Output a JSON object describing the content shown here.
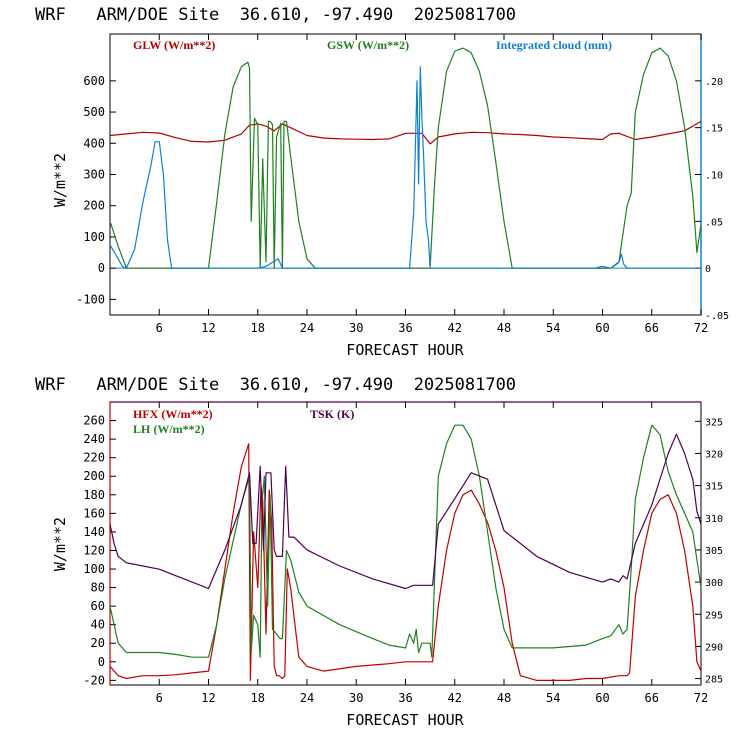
{
  "chart_data": [
    {
      "type": "line",
      "title": "WRF   ARM/DOE Site  36.610, -97.490  2025081700",
      "xlabel": "FORECAST HOUR",
      "ylabel": "W/m**2",
      "xlim": [
        0,
        72
      ],
      "ylim": [
        -150,
        750
      ],
      "x_ticks": [
        6,
        12,
        18,
        24,
        30,
        36,
        42,
        48,
        54,
        60,
        66,
        72
      ],
      "y_ticks": [
        -100,
        0,
        100,
        200,
        300,
        400,
        500,
        600
      ],
      "y2_ticks": [
        -0.05,
        0,
        0.05,
        0.1,
        0.15,
        0.2
      ],
      "y2_tick_labels": [
        "-.05",
        "0",
        ".05",
        ".10",
        ".15",
        ".20"
      ],
      "y2lim": [
        -0.05,
        0.25
      ],
      "series": [
        {
          "name": "GLW (W/m**2)",
          "axis": "left",
          "color": "#b00000",
          "x": [
            0,
            2,
            4,
            6,
            8,
            10,
            12,
            14,
            16,
            17,
            18,
            19,
            20,
            21,
            22,
            24,
            26,
            28,
            30,
            32,
            34,
            36,
            38,
            39,
            40,
            42,
            44,
            46,
            48,
            50,
            52,
            54,
            56,
            58,
            60,
            61,
            62,
            64,
            66,
            68,
            70,
            71,
            72
          ],
          "y": [
            425,
            430,
            435,
            433,
            418,
            406,
            404,
            410,
            430,
            458,
            462,
            455,
            440,
            462,
            450,
            425,
            417,
            414,
            413,
            412,
            414,
            432,
            432,
            398,
            420,
            430,
            435,
            434,
            430,
            428,
            425,
            420,
            418,
            415,
            412,
            430,
            432,
            412,
            420,
            430,
            440,
            455,
            470
          ]
        },
        {
          "name": "GSW (W/m**2)",
          "axis": "left",
          "color": "#208020",
          "x": [
            0,
            1,
            2,
            10,
            12,
            13,
            14,
            15,
            16,
            16.8,
            17,
            17.2,
            17.6,
            18.0,
            18.3,
            18.6,
            19.0,
            19.3,
            19.5,
            19.8,
            20.0,
            20.3,
            20.8,
            21.0,
            21.2,
            21.5,
            22,
            23,
            24,
            25,
            36,
            37,
            38,
            39,
            39.5,
            40,
            41,
            42,
            43,
            44,
            45,
            46,
            47,
            48,
            49,
            60,
            61,
            62,
            63,
            63.5,
            64,
            65,
            66,
            67,
            68,
            69,
            70,
            71,
            71.5,
            72
          ],
          "y": [
            150,
            70,
            0,
            0,
            0,
            210,
            430,
            580,
            645,
            660,
            640,
            150,
            480,
            460,
            0,
            350,
            20,
            470,
            470,
            460,
            0,
            420,
            465,
            0,
            470,
            470,
            360,
            150,
            30,
            0,
            0,
            0,
            0,
            0,
            250,
            450,
            630,
            695,
            705,
            690,
            630,
            520,
            340,
            150,
            0,
            0,
            0,
            20,
            200,
            240,
            500,
            620,
            690,
            705,
            680,
            600,
            450,
            230,
            50,
            140
          ]
        },
        {
          "name": "Integrated cloud (mm)",
          "axis": "right",
          "color": "#1080d0",
          "x": [
            0,
            1,
            1.5,
            2,
            3,
            4,
            5,
            5.5,
            6,
            6.5,
            7,
            7.5,
            8,
            9,
            18,
            19,
            20.5,
            21,
            22,
            36.5,
            37,
            37.2,
            37.4,
            37.6,
            37.8,
            38.0,
            38.2,
            38.5,
            38.8,
            39,
            40,
            59,
            60,
            61,
            62,
            62.3,
            62.6,
            63,
            72
          ],
          "y": [
            0.025,
            0.01,
            0.002,
            0.0,
            0.02,
            0.07,
            0.11,
            0.135,
            0.135,
            0.1,
            0.03,
            0.0,
            0.0,
            0.0,
            0.0,
            0.002,
            0.01,
            0.0,
            0.0,
            0.0,
            0.06,
            0.13,
            0.2,
            0.09,
            0.215,
            0.16,
            0.12,
            0.05,
            0.03,
            0.0,
            0.0,
            0.0,
            0.002,
            0.0,
            0.006,
            0.015,
            0.004,
            0.0,
            0.0
          ]
        }
      ]
    },
    {
      "type": "line",
      "title": "WRF   ARM/DOE Site  36.610, -97.490  2025081700",
      "xlabel": "FORECAST HOUR",
      "ylabel": "W/m**2",
      "xlim": [
        0,
        72
      ],
      "ylim": [
        -25,
        280
      ],
      "x_ticks": [
        6,
        12,
        18,
        24,
        30,
        36,
        42,
        48,
        54,
        60,
        66,
        72
      ],
      "y_ticks": [
        -20,
        0,
        20,
        40,
        60,
        80,
        100,
        120,
        140,
        160,
        180,
        200,
        220,
        240,
        260
      ],
      "y2_ticks": [
        285,
        290,
        295,
        300,
        305,
        310,
        315,
        320,
        325
      ],
      "y2lim": [
        284,
        328
      ],
      "series": [
        {
          "name": "HFX (W/m**2)",
          "axis": "left",
          "color": "#c00000",
          "x": [
            0,
            1,
            2,
            4,
            6,
            8,
            10,
            12,
            13,
            14,
            15,
            16,
            16.9,
            17.1,
            17.5,
            18,
            18.4,
            18.6,
            19,
            19.4,
            19.7,
            20,
            20.3,
            20.6,
            21,
            21.3,
            21.6,
            22,
            23,
            24,
            26,
            30,
            34,
            36,
            38,
            39,
            39.3,
            40,
            41,
            42,
            43,
            44,
            45,
            46,
            47,
            48,
            49,
            50,
            52,
            54,
            56,
            58,
            60,
            62,
            63,
            63.3,
            64,
            65,
            66,
            67,
            68,
            69,
            70,
            71,
            71.5,
            72
          ],
          "y": [
            -5,
            -15,
            -18,
            -15,
            -15,
            -14,
            -12,
            -10,
            40,
            100,
            160,
            210,
            235,
            -20,
            140,
            80,
            190,
            175,
            30,
            185,
            150,
            -5,
            -15,
            -15,
            -18,
            -15,
            100,
            80,
            5,
            -5,
            -10,
            -5,
            -2,
            0,
            0,
            0,
            0,
            60,
            120,
            160,
            180,
            185,
            170,
            150,
            120,
            80,
            20,
            -15,
            -20,
            -20,
            -20,
            -18,
            -18,
            -15,
            -15,
            -12,
            70,
            120,
            160,
            175,
            180,
            160,
            120,
            60,
            0,
            -10
          ]
        },
        {
          "name": "LH (W/m**2)",
          "axis": "left",
          "color": "#208020",
          "x": [
            0,
            1,
            2,
            4,
            6,
            8,
            10,
            12,
            13,
            14,
            15,
            16,
            17,
            17.2,
            17.5,
            18,
            18.3,
            18.5,
            18.8,
            19.2,
            19.5,
            19.8,
            20.3,
            20.7,
            21,
            21.5,
            22,
            23,
            24,
            28,
            32,
            34,
            36,
            36.5,
            37,
            37.3,
            37.6,
            38,
            39,
            39.2,
            40,
            41,
            42,
            43,
            44,
            45,
            46,
            47,
            48,
            49,
            50,
            54,
            58,
            60,
            61,
            62,
            62.5,
            63,
            63.5,
            64,
            65,
            66,
            67,
            68,
            69,
            70,
            71,
            72
          ],
          "y": [
            60,
            20,
            10,
            10,
            10,
            8,
            5,
            5,
            40,
            90,
            130,
            170,
            200,
            10,
            50,
            40,
            5,
            170,
            200,
            60,
            180,
            35,
            30,
            25,
            25,
            120,
            110,
            75,
            60,
            40,
            25,
            18,
            15,
            30,
            20,
            35,
            10,
            20,
            20,
            5,
            200,
            235,
            255,
            255,
            240,
            200,
            140,
            80,
            35,
            15,
            15,
            15,
            18,
            25,
            28,
            40,
            30,
            35,
            100,
            175,
            220,
            255,
            245,
            205,
            180,
            160,
            140,
            80
          ]
        },
        {
          "name": "TSK (K)",
          "axis": "right",
          "color": "#500050",
          "x": [
            0,
            0.5,
            1,
            2,
            4,
            6,
            8,
            10,
            12,
            14,
            16,
            17,
            17.4,
            17.8,
            18.3,
            18.7,
            19,
            19.3,
            19.6,
            20,
            20.3,
            20.6,
            21,
            21.4,
            21.8,
            22.4,
            24,
            28,
            32,
            36,
            37,
            38,
            39,
            39.3,
            40,
            42,
            44,
            46,
            48,
            52,
            56,
            60,
            61,
            62,
            62.5,
            63,
            64,
            66,
            67,
            68,
            69,
            70,
            71,
            71.5,
            72
          ],
          "y": [
            309,
            306,
            304,
            303,
            302.5,
            302,
            301,
            300,
            299,
            305,
            312,
            317,
            306,
            306,
            318,
            305,
            317,
            317,
            317,
            305,
            304,
            304,
            304,
            318,
            307,
            307,
            305,
            302.5,
            300.5,
            299,
            299.5,
            299.5,
            299.5,
            299.5,
            309,
            313,
            317,
            316,
            308,
            304,
            301.5,
            300,
            300.5,
            300,
            301,
            300.5,
            306,
            312,
            316,
            320,
            323,
            320,
            316,
            311,
            309
          ]
        }
      ]
    }
  ]
}
